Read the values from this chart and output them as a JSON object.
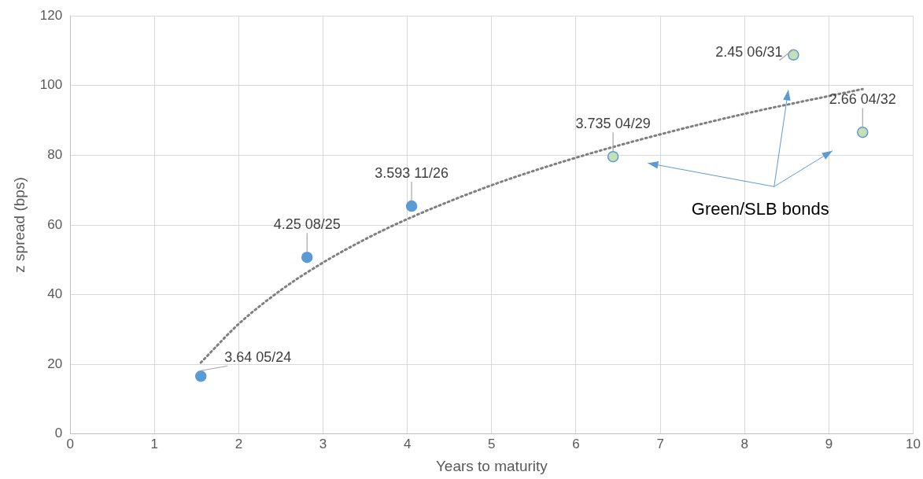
{
  "chart_data": {
    "type": "scatter",
    "xlabel": "Years to maturity",
    "ylabel": "z spread (bps)",
    "xlim": [
      0,
      10
    ],
    "xticks": [
      0,
      1,
      2,
      3,
      4,
      5,
      6,
      7,
      8,
      9,
      10
    ],
    "ylim": [
      0,
      120
    ],
    "yticks": [
      0,
      20,
      40,
      60,
      80,
      100,
      120
    ],
    "grid": true,
    "legend": false,
    "marker": "circle",
    "series": [
      {
        "color": "#5b9bd5",
        "x": [
          1.55,
          2.81,
          4.05
        ],
        "values": [
          16.6,
          50.7,
          65.4
        ]
      },
      {
        "color": "#c5e0b4",
        "x": [
          6.44,
          8.58,
          9.4
        ],
        "values": [
          79.6,
          108.8,
          86.6
        ]
      },
      {
        "type": "line",
        "color": "#7f7f7f",
        "line_style": "dotted",
        "marker": "none",
        "x": [
          1.55,
          2,
          2.5,
          3,
          3.5,
          4,
          5,
          6,
          7,
          8,
          9,
          9.4
        ],
        "values": [
          20.5,
          31.6,
          41.3,
          49.2,
          55.9,
          61.7,
          71.4,
          79.3,
          86.0,
          91.9,
          97.0,
          99.0
        ]
      }
    ],
    "annotations": [
      {
        "text": "3.64 05/24",
        "x": 1.55,
        "y": 16.6
      },
      {
        "text": "4.25 08/25",
        "x": 2.81,
        "y": 50.7
      },
      {
        "text": "3.593 11/26",
        "x": 4.05,
        "y": 65.4
      },
      {
        "text": "3.735 04/29",
        "x": 6.44,
        "y": 79.6
      },
      {
        "text": "2.45 06/31",
        "x": 8.58,
        "y": 108.8
      },
      {
        "text": "2.66 04/32",
        "x": 9.4,
        "y": 86.6
      },
      "Green/SLB bonds"
    ]
  }
}
